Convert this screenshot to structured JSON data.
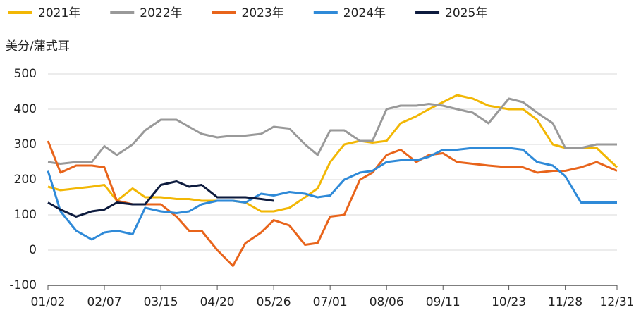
{
  "chart_data": {
    "type": "line",
    "y_label": "美分/蒲式耳",
    "x": [
      "01/02",
      "01/10",
      "01/20",
      "01/30",
      "02/07",
      "02/15",
      "02/25",
      "03/05",
      "03/15",
      "03/25",
      "04/02",
      "04/10",
      "04/20",
      "04/30",
      "05/08",
      "05/18",
      "05/26",
      "06/05",
      "06/15",
      "06/23",
      "07/01",
      "07/10",
      "07/20",
      "07/28",
      "08/06",
      "08/15",
      "08/25",
      "09/02",
      "09/11",
      "09/20",
      "09/30",
      "10/10",
      "10/23",
      "11/01",
      "11/10",
      "11/20",
      "11/28",
      "12/08",
      "12/18",
      "12/31"
    ],
    "xticks": [
      "01/02",
      "02/07",
      "03/15",
      "04/20",
      "05/26",
      "07/01",
      "08/06",
      "09/11",
      "10/23",
      "11/28",
      "12/31"
    ],
    "ylim": [
      -100,
      500
    ],
    "yticks": [
      -100,
      0,
      100,
      200,
      300,
      400,
      500
    ],
    "grid": true,
    "legend": "top",
    "series": [
      {
        "name": "2021年",
        "color": "#f2b705",
        "values": [
          180,
          170,
          175,
          180,
          185,
          140,
          175,
          150,
          150,
          145,
          145,
          140,
          140,
          140,
          135,
          110,
          110,
          120,
          150,
          175,
          250,
          300,
          310,
          305,
          310,
          360,
          380,
          400,
          420,
          440,
          430,
          410,
          400,
          400,
          370,
          300,
          290,
          290,
          290,
          235
        ]
      },
      {
        "name": "2022年",
        "color": "#999999",
        "values": [
          250,
          245,
          250,
          250,
          295,
          270,
          300,
          340,
          370,
          370,
          350,
          330,
          320,
          325,
          325,
          330,
          350,
          345,
          300,
          270,
          340,
          340,
          310,
          310,
          400,
          410,
          410,
          415,
          410,
          400,
          390,
          360,
          430,
          420,
          390,
          360,
          290,
          290,
          300,
          300
        ]
      },
      {
        "name": "2023年",
        "color": "#e8641b",
        "values": [
          310,
          220,
          240,
          240,
          235,
          140,
          130,
          130,
          130,
          95,
          55,
          55,
          0,
          -45,
          20,
          50,
          85,
          70,
          15,
          20,
          95,
          100,
          200,
          220,
          270,
          285,
          250,
          270,
          275,
          250,
          245,
          240,
          235,
          235,
          220,
          225,
          225,
          235,
          250,
          225
        ]
      },
      {
        "name": "2024年",
        "color": "#2f8ad8",
        "values": [
          225,
          110,
          55,
          30,
          50,
          55,
          45,
          120,
          110,
          105,
          110,
          130,
          140,
          140,
          135,
          160,
          155,
          165,
          160,
          150,
          155,
          200,
          220,
          225,
          250,
          255,
          255,
          265,
          285,
          285,
          290,
          290,
          290,
          285,
          250,
          240,
          210,
          135,
          135,
          135
        ]
      },
      {
        "name": "2025年",
        "color": "#0d1b3e",
        "values": [
          135,
          115,
          95,
          110,
          115,
          135,
          130,
          130,
          185,
          195,
          180,
          185,
          150,
          150,
          150,
          145,
          140,
          null,
          null,
          null,
          null,
          null,
          null,
          null,
          null,
          null,
          null,
          null,
          null,
          null,
          null,
          null,
          null,
          null,
          null,
          null,
          null,
          null,
          null,
          null
        ]
      }
    ]
  }
}
